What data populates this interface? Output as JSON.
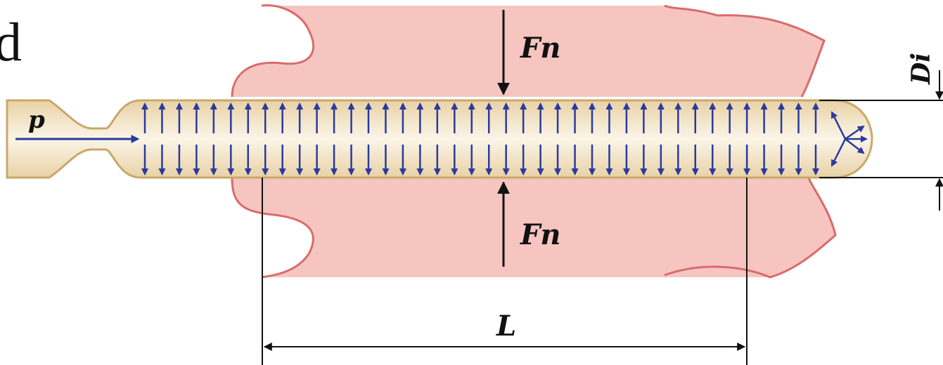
{
  "diagram": {
    "labels": {
      "pressure": "p",
      "force_top": "Fn",
      "force_bottom": "Fn",
      "diameter": "Di",
      "length": "L",
      "cut_letter": "d"
    },
    "colors": {
      "tissue_fill": "#f6c5c0",
      "tissue_outline": "#d96b6b",
      "catheter_fill": "#f4e8cf",
      "catheter_outline": "#c9a86a",
      "pressure_arrows": "#2a3a9e",
      "dimension_lines": "#111111",
      "page_background": "#ffffff"
    },
    "pressure_arrow_columns": 40
  }
}
